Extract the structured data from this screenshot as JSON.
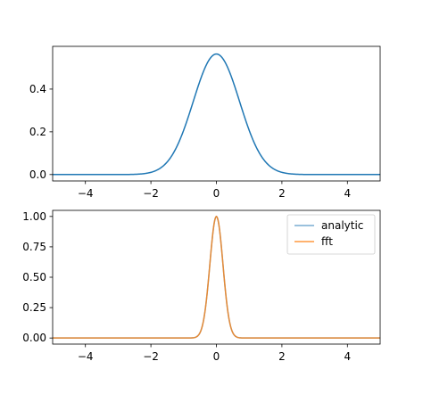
{
  "chart_data": [
    {
      "type": "line",
      "title": "",
      "xlabel": "",
      "ylabel": "",
      "xlim": [
        -5,
        5
      ],
      "ylim": [
        -0.03,
        0.6
      ],
      "x_ticks": [
        -4,
        -2,
        0,
        2,
        4
      ],
      "x_tick_labels": [
        "−4",
        "−2",
        "0",
        "2",
        "4"
      ],
      "y_ticks": [
        0.0,
        0.2,
        0.4
      ],
      "y_tick_labels": [
        "0.0",
        "0.2",
        "0.4"
      ],
      "grid": false,
      "legend": null,
      "x_range": [
        -5,
        5
      ],
      "series": [
        {
          "name": "",
          "color": "#1f77b4",
          "peak_x": 0.0,
          "peak_y": 0.564,
          "sigma": 0.707
        }
      ]
    },
    {
      "type": "line",
      "title": "",
      "xlabel": "",
      "ylabel": "",
      "xlim": [
        -5,
        5
      ],
      "ylim": [
        -0.05,
        1.05
      ],
      "x_ticks": [
        -4,
        -2,
        0,
        2,
        4
      ],
      "x_tick_labels": [
        "−4",
        "−2",
        "0",
        "2",
        "4"
      ],
      "y_ticks": [
        0.0,
        0.25,
        0.5,
        0.75,
        1.0
      ],
      "y_tick_labels": [
        "0.00",
        "0.25",
        "0.50",
        "0.75",
        "1.00"
      ],
      "grid": false,
      "legend": "top-right",
      "x_range": [
        -5,
        5
      ],
      "series": [
        {
          "name": "analytic",
          "color": "#1f77b4",
          "opacity": 0.6,
          "peak_x": 0.0,
          "peak_y": 1.0,
          "sigma": 0.2
        },
        {
          "name": "fft",
          "color": "#ff7f0e",
          "opacity": 0.8,
          "peak_x": 0.0,
          "peak_y": 1.0,
          "sigma": 0.2
        }
      ]
    }
  ]
}
